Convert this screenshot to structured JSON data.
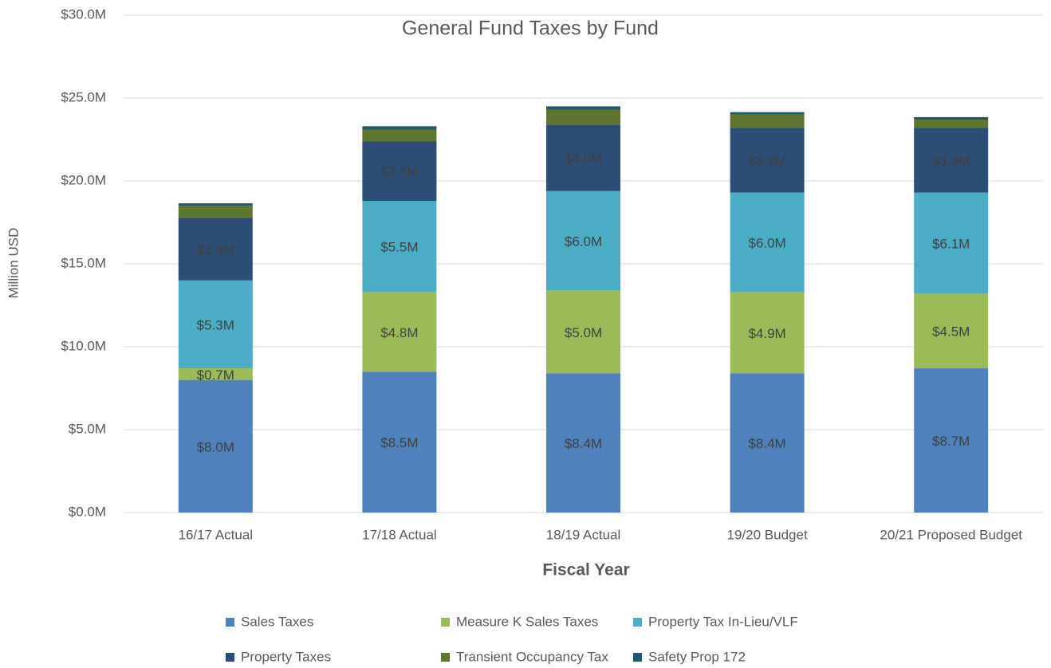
{
  "chart_data": {
    "type": "stacked_bar",
    "title": "General Fund Taxes by Fund",
    "x_label": "Fiscal Year",
    "y_label": "Million USD",
    "categories": [
      "16/17 Actual",
      "17/18 Actual",
      "18/19 Actual",
      "19/20 Budget",
      "20/21 Proposed Budget"
    ],
    "ylim": [
      0,
      30
    ],
    "yticks": [
      {
        "value": 0,
        "label": "$0.0M"
      },
      {
        "value": 5,
        "label": "$5.0M"
      },
      {
        "value": 10,
        "label": "$10.0M"
      },
      {
        "value": 15,
        "label": "$15.0M"
      },
      {
        "value": 20,
        "label": "$20.0M"
      },
      {
        "value": 25,
        "label": "$25.0M"
      },
      {
        "value": 30,
        "label": "$30.0M"
      }
    ],
    "grid": true,
    "legend": "bottom",
    "series": [
      {
        "name": "Sales Taxes",
        "color": "#4f81bd",
        "values": [
          8.0,
          8.5,
          8.4,
          8.4,
          8.7
        ],
        "value_labels": [
          "$8.0M",
          "$8.5M",
          "$8.4M",
          "$8.4M",
          "$8.7M"
        ]
      },
      {
        "name": "Measure K Sales Taxes",
        "color": "#9bbb59",
        "values": [
          0.7,
          4.8,
          5.0,
          4.9,
          4.5
        ],
        "value_labels": [
          "$0.7M",
          "$4.8M",
          "$5.0M",
          "$4.9M",
          "$4.5M"
        ]
      },
      {
        "name": "Property Tax In-Lieu/VLF",
        "color": "#4bacc6",
        "values": [
          5.3,
          5.5,
          6.0,
          6.0,
          6.1
        ],
        "value_labels": [
          "$5.3M",
          "$5.5M",
          "$6.0M",
          "$6.0M",
          "$6.1M"
        ]
      },
      {
        "name": "Property Taxes",
        "color": "#2c4d75",
        "values": [
          3.8,
          3.6,
          4.0,
          3.9,
          3.9
        ],
        "value_labels": [
          "$3.8M",
          "$3.6M",
          "$4.0M",
          "$3.9M",
          "$3.9M"
        ]
      },
      {
        "name": "Transient Occupancy Tax",
        "color": "#5f7530",
        "values": [
          0.7,
          0.7,
          0.9,
          0.8,
          0.5
        ]
      },
      {
        "name": "Safety Prop 172",
        "color": "#215968",
        "values": [
          0.15,
          0.2,
          0.2,
          0.15,
          0.15
        ]
      }
    ]
  }
}
